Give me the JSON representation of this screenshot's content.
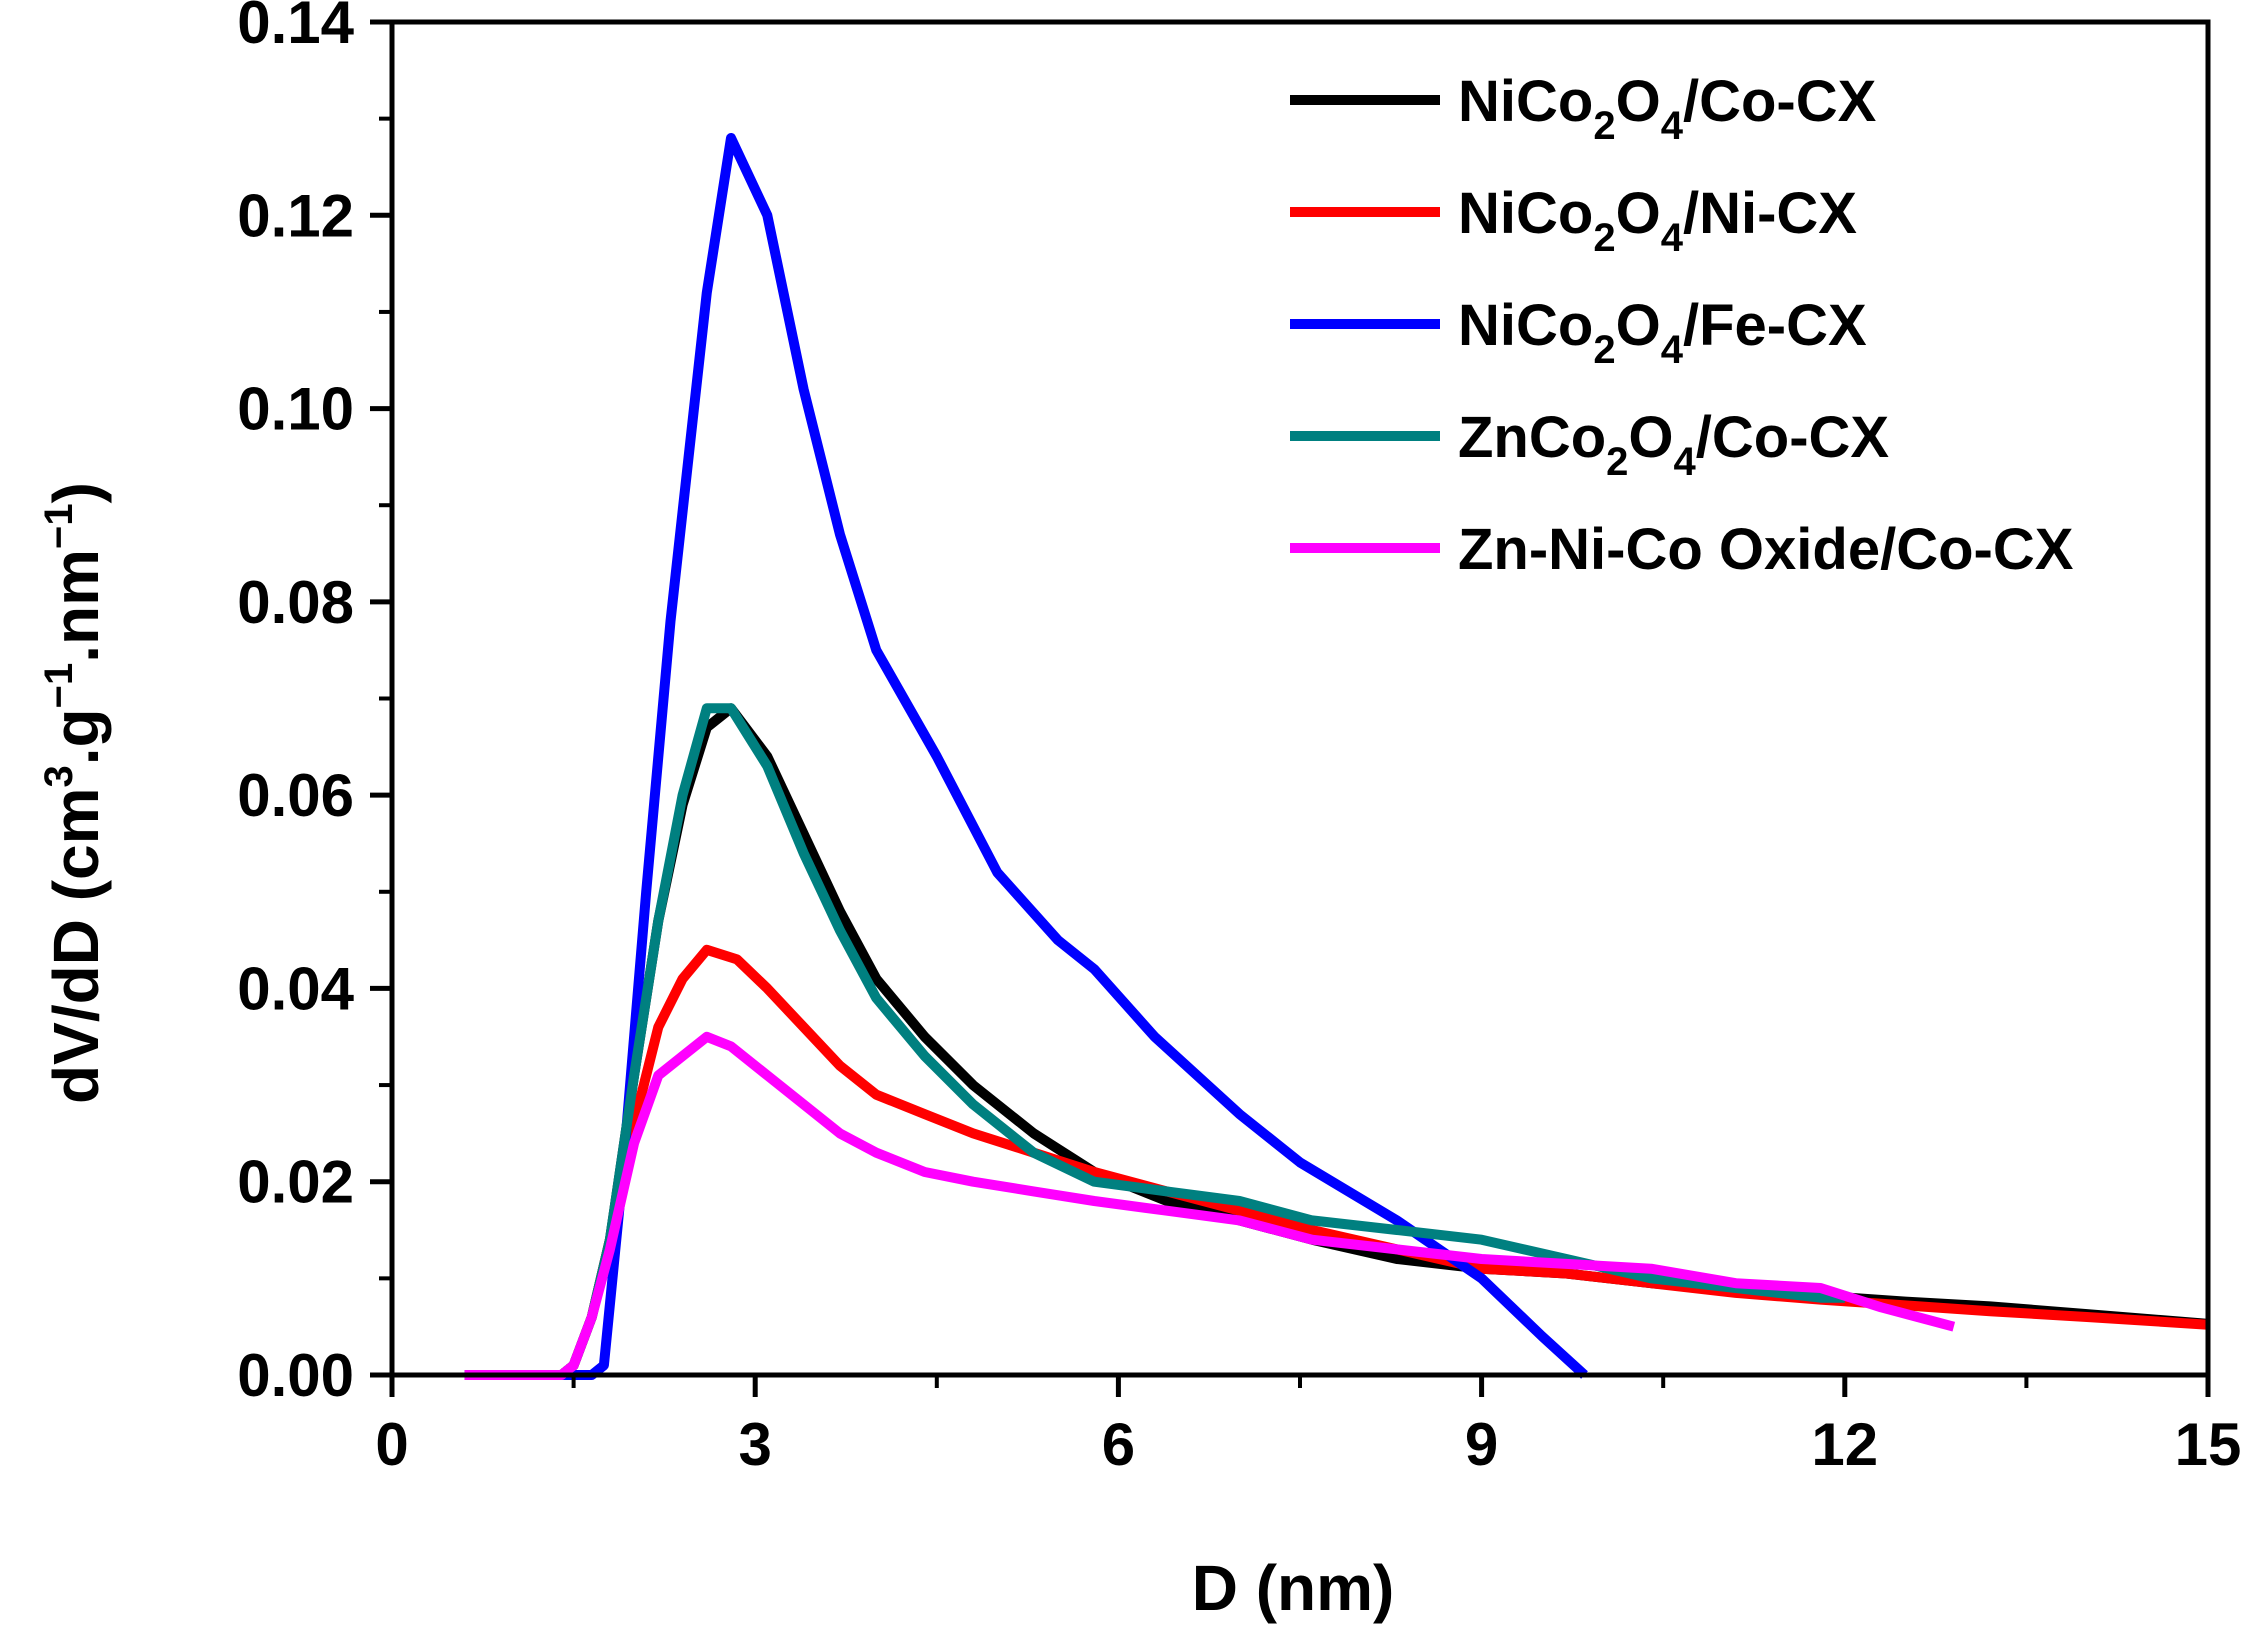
{
  "chart_data": {
    "type": "line",
    "title": "",
    "xlabel": "D (nm)",
    "ylabel": {
      "prefix": "dV/dD (cm",
      "sup1": "3",
      "mid1": ".g",
      "sup2": "−1",
      "mid2": ".nm",
      "sup3": "−1",
      "suffix": ")"
    },
    "xlim": [
      0,
      15
    ],
    "ylim": [
      0,
      0.14
    ],
    "xticks": [
      "0",
      "3",
      "6",
      "9",
      "12",
      "15"
    ],
    "xtick_values": [
      0,
      3,
      6,
      9,
      12,
      15
    ],
    "yticks": [
      "0.00",
      "0.02",
      "0.04",
      "0.06",
      "0.08",
      "0.10",
      "0.12",
      "0.14"
    ],
    "ytick_values": [
      0,
      0.02,
      0.04,
      0.06,
      0.08,
      0.1,
      0.12,
      0.14
    ],
    "legend_position": "top-right",
    "series": [
      {
        "name": "NiCo2O4/Co-CX",
        "legend": {
          "a": "NiCo",
          "s1": "2",
          "b": "O",
          "s2": "4",
          "c": "/Co-CX"
        },
        "color": "#000000",
        "x": [
          0.6,
          1.4,
          1.5,
          1.65,
          1.8,
          2.0,
          2.2,
          2.4,
          2.6,
          2.8,
          3.1,
          3.4,
          3.7,
          4.0,
          4.4,
          4.8,
          5.3,
          5.8,
          6.4,
          7.0,
          7.6,
          8.3,
          9.0,
          9.7,
          10.4,
          11.1,
          11.8,
          12.5,
          13.2,
          14.0,
          15.0
        ],
        "y": [
          0,
          0,
          0.001,
          0.006,
          0.014,
          0.031,
          0.047,
          0.059,
          0.067,
          0.069,
          0.064,
          0.056,
          0.048,
          0.041,
          0.035,
          0.03,
          0.025,
          0.021,
          0.018,
          0.016,
          0.014,
          0.012,
          0.011,
          0.0105,
          0.0095,
          0.0088,
          0.0082,
          0.0076,
          0.0071,
          0.0063,
          0.0053
        ]
      },
      {
        "name": "NiCo2O4/Ni-CX",
        "legend": {
          "a": "NiCo",
          "s1": "2",
          "b": "O",
          "s2": "4",
          "c": "/Ni-CX"
        },
        "color": "#ff0000",
        "x": [
          0.6,
          1.4,
          1.5,
          1.65,
          1.8,
          2.0,
          2.2,
          2.4,
          2.6,
          2.85,
          3.1,
          3.4,
          3.7,
          4.0,
          4.4,
          4.8,
          5.3,
          5.8,
          6.4,
          7.0,
          7.6,
          8.3,
          9.0,
          9.7,
          10.4,
          11.1,
          11.8,
          12.5,
          13.2,
          14.0,
          15.0
        ],
        "y": [
          0,
          0,
          0.001,
          0.006,
          0.014,
          0.026,
          0.036,
          0.041,
          0.044,
          0.043,
          0.04,
          0.036,
          0.032,
          0.029,
          0.027,
          0.025,
          0.023,
          0.021,
          0.019,
          0.017,
          0.015,
          0.013,
          0.011,
          0.0105,
          0.0095,
          0.0085,
          0.0078,
          0.0072,
          0.0066,
          0.006,
          0.0052
        ]
      },
      {
        "name": "NiCo2O4/Fe-CX",
        "legend": {
          "a": "NiCo",
          "s1": "2",
          "b": "O",
          "s2": "4",
          "c": "/Fe-CX"
        },
        "color": "#0000ff",
        "x": [
          0.6,
          1.55,
          1.65,
          1.75,
          1.9,
          2.1,
          2.3,
          2.45,
          2.6,
          2.8,
          3.1,
          3.4,
          3.7,
          4.0,
          4.5,
          5.0,
          5.5,
          5.8,
          6.3,
          7.0,
          7.5,
          8.3,
          9.0,
          9.5,
          9.85
        ],
        "y": [
          0,
          0,
          0,
          0.001,
          0.02,
          0.05,
          0.078,
          0.095,
          0.112,
          0.128,
          0.12,
          0.102,
          0.087,
          0.075,
          0.064,
          0.052,
          0.045,
          0.042,
          0.035,
          0.027,
          0.022,
          0.016,
          0.01,
          0.004,
          0.0
        ]
      },
      {
        "name": "ZnCo2O4/Co-CX",
        "legend": {
          "a": "ZnCo",
          "s1": "2",
          "b": "O",
          "s2": "4",
          "c": "/Co-CX"
        },
        "color": "#008080",
        "x": [
          0.6,
          1.4,
          1.5,
          1.65,
          1.8,
          2.0,
          2.2,
          2.4,
          2.6,
          2.8,
          3.1,
          3.4,
          3.7,
          4.0,
          4.4,
          4.8,
          5.3,
          5.8,
          6.4,
          7.0,
          7.6,
          8.3,
          9.0,
          9.7,
          10.4,
          11.1,
          11.8,
          12.0
        ],
        "y": [
          0,
          0,
          0.001,
          0.006,
          0.014,
          0.031,
          0.047,
          0.06,
          0.069,
          0.069,
          0.063,
          0.054,
          0.046,
          0.039,
          0.033,
          0.028,
          0.023,
          0.02,
          0.019,
          0.018,
          0.016,
          0.015,
          0.014,
          0.012,
          0.01,
          0.009,
          0.008,
          0.008
        ]
      },
      {
        "name": "Zn-Ni-Co Oxide/Co-CX",
        "legend": {
          "a": "Zn-Ni-Co Oxide/Co-CX",
          "s1": "",
          "b": "",
          "s2": "",
          "c": ""
        },
        "color": "#ff00ff",
        "x": [
          0.6,
          1.4,
          1.5,
          1.65,
          1.8,
          2.0,
          2.2,
          2.4,
          2.6,
          2.8,
          3.1,
          3.4,
          3.7,
          4.0,
          4.4,
          4.8,
          5.3,
          5.8,
          6.4,
          7.0,
          7.6,
          8.3,
          9.0,
          9.7,
          10.4,
          11.1,
          11.8,
          12.3,
          12.9
        ],
        "y": [
          0,
          0,
          0.001,
          0.006,
          0.013,
          0.024,
          0.031,
          0.033,
          0.035,
          0.034,
          0.031,
          0.028,
          0.025,
          0.023,
          0.021,
          0.02,
          0.019,
          0.018,
          0.017,
          0.016,
          0.014,
          0.013,
          0.012,
          0.0115,
          0.011,
          0.0095,
          0.009,
          0.007,
          0.005
        ]
      }
    ]
  }
}
